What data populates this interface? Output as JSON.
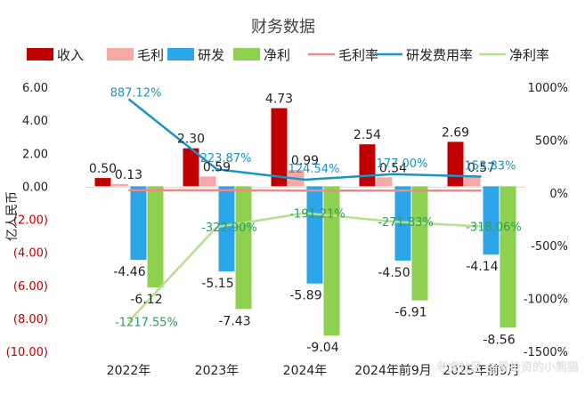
{
  "chart_data": {
    "type": "bar+line",
    "title": "财务数据",
    "ylabel": "亿人民币",
    "categories": [
      "2022年",
      "2023年",
      "2024年",
      "2024年前9月",
      "2025年前9月"
    ],
    "ylim_left": [
      -10,
      6
    ],
    "left_ticks": [
      "6.00",
      "4.00",
      "2.00",
      "0.00",
      "(2.00)",
      "(4.00)",
      "(6.00)",
      "(8.00)",
      "(10.00)"
    ],
    "ylim_right_percent": [
      -1500,
      1000
    ],
    "right_ticks": [
      "1000%",
      "500%",
      "0%",
      "-500%",
      "-1000%",
      "-1500%"
    ],
    "legend": [
      "收入",
      "毛利",
      "研发",
      "净利",
      "毛利率",
      "研发费用率",
      "净利率"
    ],
    "series": [
      {
        "name": "收入",
        "kind": "bar",
        "color": "#c00000",
        "values": [
          0.5,
          2.3,
          4.73,
          2.54,
          2.69
        ],
        "labels": [
          "0.50",
          "2.30",
          "4.73",
          "2.54",
          "2.69"
        ]
      },
      {
        "name": "毛利",
        "kind": "bar",
        "color": "#f4a9a4",
        "values": [
          0.13,
          0.59,
          0.99,
          0.54,
          0.57
        ],
        "labels": [
          "0.13",
          "0.59",
          "0.99",
          "0.54",
          "0.57"
        ]
      },
      {
        "name": "研发",
        "kind": "bar",
        "color": "#2ca6e8",
        "values": [
          -4.46,
          -5.15,
          -5.89,
          -4.5,
          -4.14
        ],
        "labels": [
          "-4.46",
          "-5.15",
          "-5.89",
          "-4.50",
          "-4.14"
        ]
      },
      {
        "name": "净利",
        "kind": "bar",
        "color": "#8ed04f",
        "values": [
          -6.12,
          -7.43,
          -9.04,
          -6.91,
          -8.56
        ],
        "labels": [
          "-6.12",
          "-7.43",
          "-9.04",
          "-6.91",
          "-8.56"
        ]
      },
      {
        "name": "毛利率",
        "kind": "line",
        "color": "#f08a84",
        "values": [
          26,
          26,
          21,
          21,
          21
        ],
        "labels": []
      },
      {
        "name": "研发费用率",
        "kind": "line",
        "color": "#1894c8",
        "values": [
          887.12,
          223.87,
          124.54,
          177.0,
          153.83
        ],
        "labels": [
          "887.12%",
          "223.87%",
          "124.54%",
          "177.00%",
          "153.83%"
        ]
      },
      {
        "name": "净利率",
        "kind": "line",
        "color": "#b6df8e",
        "values": [
          -1217.55,
          -322.9,
          -191.21,
          -271.83,
          -318.06
        ],
        "labels": [
          "-1217.55%",
          "-322.90%",
          "-191.21%",
          "-271.83%",
          "-318.06%"
        ]
      }
    ],
    "watermark": "老虎社区 @爱投资的小熊猫"
  },
  "colors": {
    "axis_text": "#222222",
    "negative_tick": "#c00000",
    "pct_label": "#1894c8",
    "net_pct_label": "#2e9e5a",
    "zero_line": "#f08a84"
  }
}
